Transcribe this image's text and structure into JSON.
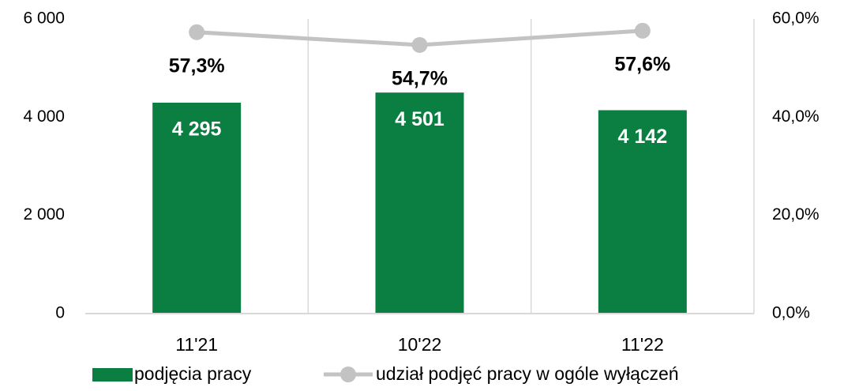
{
  "chart_data": {
    "type": "bar",
    "categories": [
      "11'21",
      "10'22",
      "11'22"
    ],
    "series": [
      {
        "name": "podjęcia pracy",
        "type": "bar",
        "color": "#0a7f41",
        "values": [
          4295,
          4501,
          4142
        ],
        "value_labels": [
          "4 295",
          "4 501",
          "4 142"
        ]
      },
      {
        "name": "udział podjęć pracy w ogóle wyłączeń",
        "type": "line",
        "axis": "y2",
        "color": "#c3c3c3",
        "values": [
          57.3,
          54.7,
          57.6
        ],
        "value_labels": [
          "57,3%",
          "54,7%",
          "57,6%"
        ]
      }
    ],
    "ylim": [
      0,
      6000
    ],
    "yticks": [
      0,
      {
        "value": 2000,
        "label": "2 000"
      },
      {
        "value": 4000,
        "label": "4 000"
      },
      {
        "value": 6000,
        "label": "6 000"
      }
    ],
    "y2lim": [
      0,
      60
    ],
    "y2ticks": [
      {
        "value": 0,
        "label": "0,0%"
      },
      {
        "value": 20,
        "label": "20,0%"
      },
      {
        "value": 40,
        "label": "40,0%"
      },
      {
        "value": 60,
        "label": "60,0%"
      }
    ],
    "legend": "bottom"
  }
}
